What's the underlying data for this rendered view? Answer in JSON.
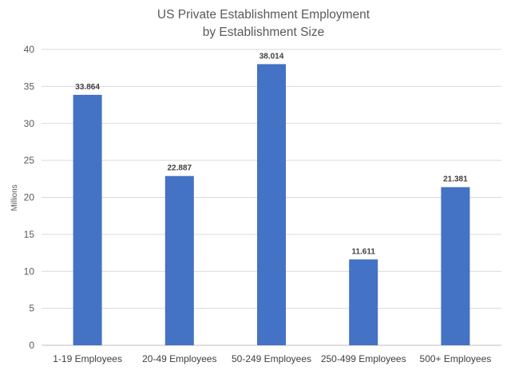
{
  "chart_data": {
    "type": "bar",
    "title": "US Private Establishment Employment",
    "subtitle": "by Establishment Size",
    "xlabel": "",
    "ylabel": "Millions",
    "ylim": [
      0,
      40
    ],
    "yticks": [
      0,
      5,
      10,
      15,
      20,
      25,
      30,
      35,
      40
    ],
    "categories": [
      "1-19 Employees",
      "20-49 Employees",
      "50-249 Employees",
      "250-499 Employees",
      "500+ Employees"
    ],
    "values": [
      33.864,
      22.887,
      38.014,
      11.611,
      21.381
    ],
    "data_labels": [
      "33.864",
      "22.887",
      "38.014",
      "11.611",
      "21.381"
    ],
    "bar_color": "#4472c4",
    "grid": true,
    "legend": "none"
  }
}
